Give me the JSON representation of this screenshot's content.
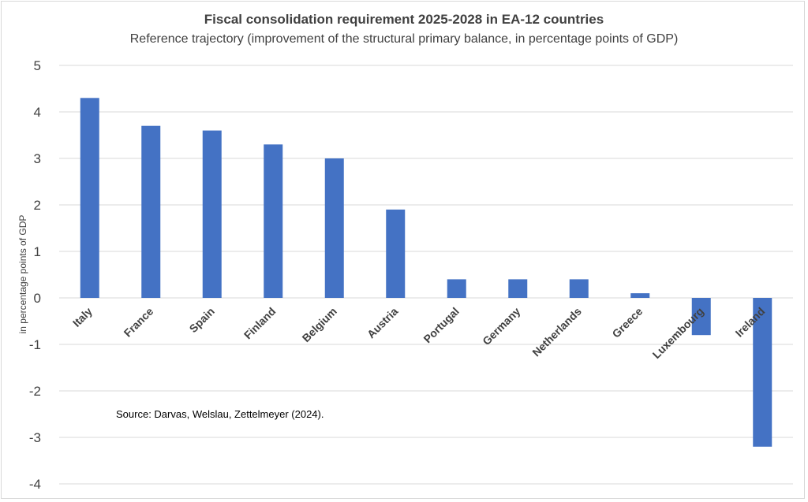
{
  "chart_data": {
    "type": "bar",
    "title": "Fiscal consolidation requirement 2025-2028 in EA-12 countries",
    "subtitle": "Reference trajectory (improvement of the structural primary balance, in percentage points of GDP)",
    "xlabel": "",
    "ylabel": "in percentage points of GDP",
    "ylim": [
      -4,
      5
    ],
    "yticks": [
      "5",
      "4",
      "3",
      "2",
      "1",
      "0",
      "-1",
      "-2",
      "-3",
      "-4"
    ],
    "yticks_values": [
      5,
      4,
      3,
      2,
      1,
      0,
      -1,
      -2,
      -3,
      -4
    ],
    "grid": true,
    "legend": "none",
    "categories": [
      "Italy",
      "France",
      "Spain",
      "Finland",
      "Belgium",
      "Austria",
      "Portugal",
      "Germany",
      "Netherlands",
      "Greece",
      "Luxembourg",
      "Ireland"
    ],
    "values": [
      4.3,
      3.7,
      3.6,
      3.3,
      3.0,
      1.9,
      0.4,
      0.4,
      0.4,
      0.1,
      -0.8,
      -3.2
    ],
    "bar_color": "#4472C4",
    "annotation": "Source: Darvas, Welslau, Zettelmeyer (2024)."
  }
}
